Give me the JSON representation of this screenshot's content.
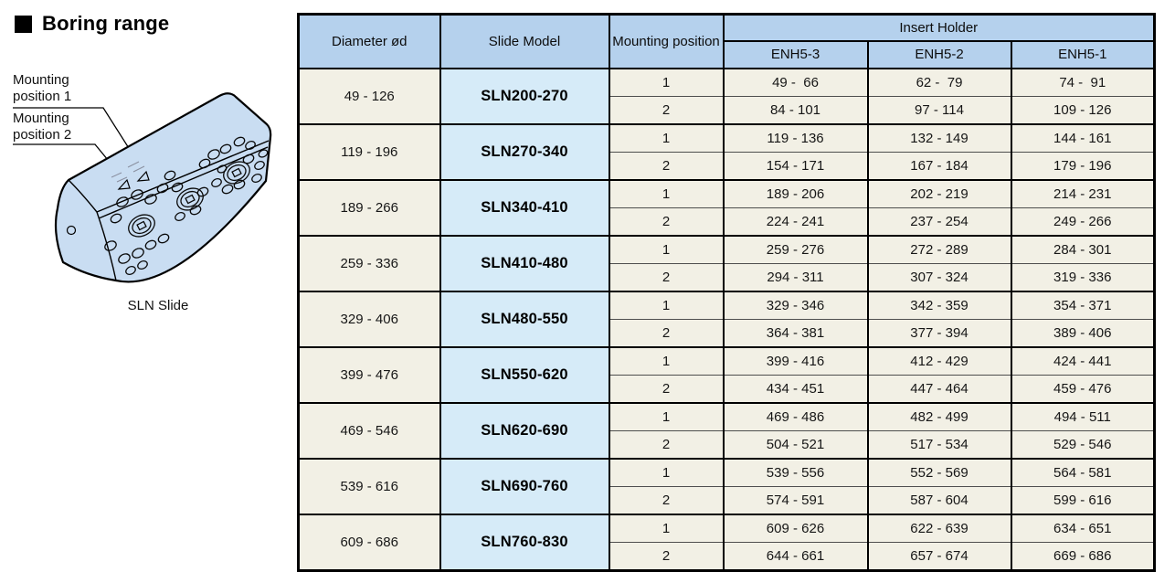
{
  "section_title": "Boring range",
  "illustration": {
    "caption": "SLN Slide",
    "labels": {
      "mounting1": "Mounting position 1",
      "mounting2": "Mounting position 2"
    }
  },
  "colors": {
    "header_blue": "#b5d1ed",
    "model_blue": "#d6ebf8",
    "row_cream": "#f2f0e5",
    "block_blue": "#c9ddf2",
    "border_dark": "#000000"
  },
  "table": {
    "headers": {
      "diameter": "Diameter ød",
      "slide_model": "Slide Model",
      "mounting_position": "Mounting position",
      "insert_holder": "Insert Holder",
      "enh_columns": [
        "ENH5-3",
        "ENH5-2",
        "ENH5-1"
      ]
    },
    "rows": [
      {
        "diameter": "49 - 126",
        "model": "SLN200-270",
        "positions": [
          {
            "position": "1",
            "ranges": [
              "49 -  66",
              "62 -  79",
              "74 -  91"
            ]
          },
          {
            "position": "2",
            "ranges": [
              "84 - 101",
              "97 - 114",
              "109 - 126"
            ]
          }
        ]
      },
      {
        "diameter": "119 - 196",
        "model": "SLN270-340",
        "positions": [
          {
            "position": "1",
            "ranges": [
              "119 - 136",
              "132 - 149",
              "144 - 161"
            ]
          },
          {
            "position": "2",
            "ranges": [
              "154 - 171",
              "167 - 184",
              "179 - 196"
            ]
          }
        ]
      },
      {
        "diameter": "189 - 266",
        "model": "SLN340-410",
        "positions": [
          {
            "position": "1",
            "ranges": [
              "189 - 206",
              "202 - 219",
              "214 - 231"
            ]
          },
          {
            "position": "2",
            "ranges": [
              "224 - 241",
              "237 - 254",
              "249 - 266"
            ]
          }
        ]
      },
      {
        "diameter": "259 - 336",
        "model": "SLN410-480",
        "positions": [
          {
            "position": "1",
            "ranges": [
              "259 - 276",
              "272 - 289",
              "284 - 301"
            ]
          },
          {
            "position": "2",
            "ranges": [
              "294 - 311",
              "307 - 324",
              "319 - 336"
            ]
          }
        ]
      },
      {
        "diameter": "329 - 406",
        "model": "SLN480-550",
        "positions": [
          {
            "position": "1",
            "ranges": [
              "329 - 346",
              "342 - 359",
              "354 - 371"
            ]
          },
          {
            "position": "2",
            "ranges": [
              "364 - 381",
              "377 - 394",
              "389 - 406"
            ]
          }
        ]
      },
      {
        "diameter": "399 - 476",
        "model": "SLN550-620",
        "positions": [
          {
            "position": "1",
            "ranges": [
              "399 - 416",
              "412 - 429",
              "424 - 441"
            ]
          },
          {
            "position": "2",
            "ranges": [
              "434 - 451",
              "447 - 464",
              "459 - 476"
            ]
          }
        ]
      },
      {
        "diameter": "469 - 546",
        "model": "SLN620-690",
        "positions": [
          {
            "position": "1",
            "ranges": [
              "469 - 486",
              "482 - 499",
              "494 - 511"
            ]
          },
          {
            "position": "2",
            "ranges": [
              "504 - 521",
              "517 - 534",
              "529 - 546"
            ]
          }
        ]
      },
      {
        "diameter": "539 - 616",
        "model": "SLN690-760",
        "positions": [
          {
            "position": "1",
            "ranges": [
              "539 - 556",
              "552 - 569",
              "564 - 581"
            ]
          },
          {
            "position": "2",
            "ranges": [
              "574 - 591",
              "587 - 604",
              "599 - 616"
            ]
          }
        ]
      },
      {
        "diameter": "609 - 686",
        "model": "SLN760-830",
        "positions": [
          {
            "position": "1",
            "ranges": [
              "609 - 626",
              "622 - 639",
              "634 - 651"
            ]
          },
          {
            "position": "2",
            "ranges": [
              "644 - 661",
              "657 - 674",
              "669 - 686"
            ]
          }
        ]
      }
    ]
  }
}
